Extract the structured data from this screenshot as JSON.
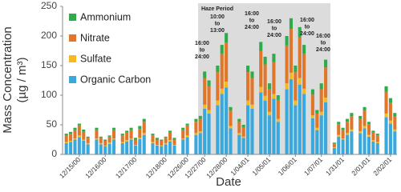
{
  "chart_data": {
    "type": "stacked_bar",
    "y_label": [
      "Mass Concentration",
      "(µg / m³)"
    ],
    "x_label": "Date",
    "ylim": [
      0,
      250
    ],
    "yticks": [
      0,
      50,
      100,
      150,
      200,
      250
    ],
    "legend": "top-left",
    "haze_label": "Haze Period",
    "annotations": [
      [
        "16:00",
        "to",
        "24:00"
      ],
      [
        "10:00",
        "to",
        "13:00"
      ],
      [
        "16:00",
        "to",
        "24:00"
      ],
      [
        "16:00",
        "to",
        "24:00"
      ],
      [
        "16:00",
        "to",
        "24:00"
      ],
      [
        "16:00",
        "to",
        "24:00"
      ]
    ],
    "categories": [
      null,
      null,
      null,
      "12/15/00",
      null,
      null,
      null,
      null,
      null,
      "12/16/00",
      null,
      null,
      null,
      null,
      null,
      null,
      "12/17/00",
      null,
      null,
      null,
      null,
      null,
      null,
      "12/18/00",
      null,
      null,
      null,
      null,
      "12/26/00",
      null,
      null,
      null,
      "12/27/00",
      null,
      null,
      null,
      null,
      "12/28/00",
      null,
      null,
      null,
      null,
      "1/04/01",
      null,
      null,
      null,
      null,
      "1/05/01",
      null,
      null,
      null,
      null,
      null,
      "1/06/01",
      null,
      null,
      null,
      null,
      null,
      "1/07/01",
      null,
      null,
      null,
      null,
      "1/31/01",
      null,
      null,
      null,
      null,
      null,
      "2/01/01",
      null,
      null,
      null,
      null,
      "2/02/01",
      null
    ],
    "series": [
      {
        "name": "Ammonium",
        "color": "#2eab4a",
        "values": [
          3,
          3,
          4,
          3,
          4,
          2,
          null,
          4,
          2,
          2,
          2,
          4,
          null,
          3,
          3,
          4,
          3,
          5,
          5,
          null,
          3,
          3,
          2,
          2,
          3,
          3,
          null,
          4,
          3,
          null,
          5,
          5,
          11,
          10,
          null,
          11,
          15,
          16,
          6,
          null,
          5,
          4,
          11,
          11,
          null,
          15,
          13,
          10,
          14,
          8,
          null,
          16,
          18,
          11,
          17,
          15,
          null,
          9,
          6,
          10,
          13,
          null,
          2,
          4,
          4,
          5,
          6,
          null,
          5,
          6,
          4,
          3,
          3,
          null,
          9,
          8,
          6
        ]
      },
      {
        "name": "Nitrate",
        "color": "#e0762a",
        "values": [
          11,
          12,
          14,
          17,
          13,
          9,
          null,
          14,
          9,
          8,
          10,
          14,
          null,
          11,
          13,
          14,
          9,
          15,
          19,
          null,
          11,
          9,
          8,
          9,
          13,
          9,
          null,
          14,
          17,
          null,
          19,
          21,
          45,
          40,
          null,
          48,
          59,
          66,
          26,
          null,
          19,
          16,
          48,
          45,
          null,
          61,
          53,
          38,
          54,
          32,
          null,
          64,
          74,
          48,
          69,
          59,
          null,
          35,
          24,
          38,
          51,
          null,
          6,
          18,
          14,
          19,
          22,
          null,
          21,
          26,
          18,
          13,
          11,
          null,
          37,
          30,
          22
        ]
      },
      {
        "name": "Sulfate",
        "color": "#f5b921",
        "values": [
          2,
          2,
          2,
          3,
          2,
          2,
          null,
          2,
          2,
          1,
          2,
          2,
          null,
          2,
          2,
          2,
          1,
          2,
          3,
          null,
          2,
          1,
          1,
          2,
          2,
          1,
          null,
          2,
          3,
          null,
          3,
          3,
          7,
          6,
          null,
          8,
          9,
          10,
          4,
          null,
          3,
          2,
          8,
          7,
          null,
          9,
          8,
          6,
          8,
          5,
          null,
          10,
          11,
          8,
          11,
          9,
          null,
          5,
          4,
          6,
          8,
          null,
          1,
          3,
          2,
          3,
          3,
          null,
          3,
          4,
          3,
          2,
          2,
          null,
          6,
          5,
          3
        ]
      },
      {
        "name": "Organic Carbon",
        "color": "#3aa8dc",
        "values": [
          19,
          21,
          25,
          29,
          23,
          17,
          null,
          25,
          17,
          14,
          18,
          25,
          null,
          19,
          22,
          25,
          15,
          26,
          33,
          null,
          19,
          15,
          14,
          17,
          22,
          15,
          null,
          25,
          29,
          null,
          33,
          36,
          77,
          69,
          null,
          83,
          102,
          113,
          44,
          null,
          33,
          28,
          83,
          77,
          null,
          105,
          91,
          66,
          94,
          55,
          null,
          110,
          127,
          83,
          118,
          102,
          null,
          61,
          41,
          66,
          88,
          null,
          11,
          30,
          25,
          33,
          39,
          null,
          36,
          44,
          30,
          22,
          19,
          null,
          63,
          52,
          39
        ]
      }
    ]
  }
}
